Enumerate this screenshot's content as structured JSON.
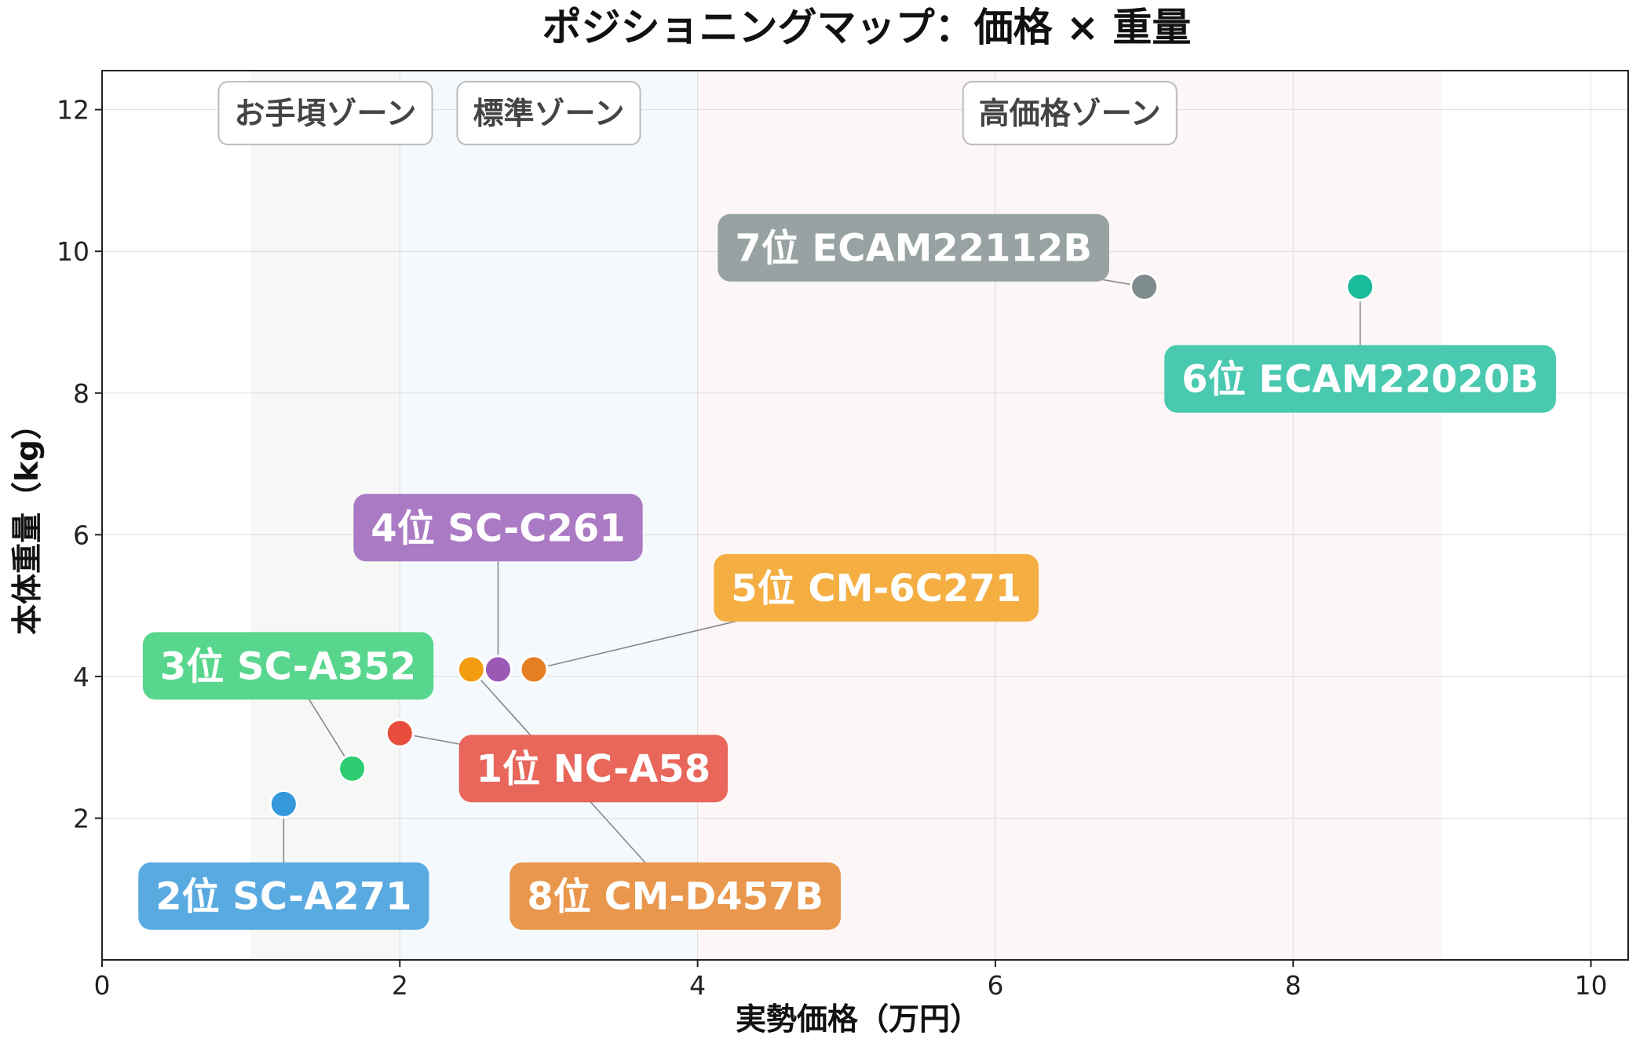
{
  "chart_data": {
    "type": "scatter",
    "title": "ポジショニングマップ：価格 × 重量",
    "xlabel": "実勢価格（万円）",
    "ylabel": "本体重量（kg）",
    "xlim": [
      0,
      10.25
    ],
    "ylim": [
      0,
      12.55
    ],
    "xticks": [
      0,
      2,
      4,
      6,
      8,
      10
    ],
    "yticks": [
      2,
      4,
      6,
      8,
      10,
      12
    ],
    "xtick_labels": [
      "0",
      "2",
      "4",
      "6",
      "8",
      "10"
    ],
    "ytick_labels": [
      "2",
      "4",
      "6",
      "8",
      "10",
      "12"
    ],
    "grid": true,
    "zones": [
      {
        "label": "お手頃ゾーン",
        "x_range": [
          1,
          2
        ],
        "color": "#e9f0e6"
      },
      {
        "label": "標準ゾーン",
        "x_range": [
          2,
          4
        ],
        "color": "#e6f2fa"
      },
      {
        "label": "高価格ゾーン",
        "x_range": [
          4,
          9
        ],
        "color": "#fbeceb"
      }
    ],
    "points": [
      {
        "label": "1位 NC-A58",
        "x": 2.0,
        "y": 3.2,
        "color": "#e74c3c",
        "label_color": "#e8665a",
        "label_x": 3.3,
        "label_y": 2.7
      },
      {
        "label": "2位 SC-A271",
        "x": 1.22,
        "y": 2.2,
        "color": "#3498db",
        "label_color": "#5aaae2",
        "label_x": 1.22,
        "label_y": 0.9
      },
      {
        "label": "3位 SC-A352",
        "x": 1.68,
        "y": 2.7,
        "color": "#2ecc71",
        "label_color": "#58d68d",
        "label_x": 1.25,
        "label_y": 4.15
      },
      {
        "label": "4位 SC-C261",
        "x": 2.66,
        "y": 4.1,
        "color": "#9b59b6",
        "label_color": "#ab7ac4",
        "label_x": 2.66,
        "label_y": 6.1
      },
      {
        "label": "5位 CM-6C271",
        "x": 2.9,
        "y": 4.1,
        "color": "#e67e22",
        "label_color": "#f5ae42",
        "label_x": 5.2,
        "label_y": 5.25
      },
      {
        "label": "6位 ECAM22020B",
        "x": 8.45,
        "y": 9.5,
        "color": "#1abc9c",
        "label_color": "#48c9b0",
        "label_x": 8.45,
        "label_y": 8.2
      },
      {
        "label": "7位 ECAM22112B",
        "x": 7.0,
        "y": 9.5,
        "color": "#7f8c8d",
        "label_color": "#98a2a3",
        "label_x": 5.45,
        "label_y": 10.05
      },
      {
        "label": "8位 CM-D457B",
        "x": 2.48,
        "y": 4.1,
        "color": "#f39c12",
        "label_color": "#e8974d",
        "label_x": 3.85,
        "label_y": 0.9
      }
    ]
  }
}
